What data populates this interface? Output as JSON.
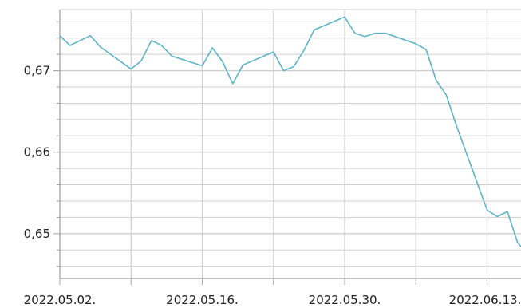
{
  "chart_data": {
    "type": "line",
    "title": "",
    "xlabel": "",
    "ylabel": "",
    "x_start": "2022-05-02",
    "x_end": "2022-06-16",
    "ylim": [
      0.6445,
      0.6775
    ],
    "y_ticks": [
      {
        "value": 0.65,
        "label": "0,65"
      },
      {
        "value": 0.66,
        "label": "0,66"
      },
      {
        "value": 0.67,
        "label": "0,67"
      }
    ],
    "x_ticks": [
      {
        "date": "2022-05-02",
        "label": "2022.05.02."
      },
      {
        "date": "2022-05-16",
        "label": "2022.05.16."
      },
      {
        "date": "2022-05-30",
        "label": "2022.05.30."
      },
      {
        "date": "2022-06-13",
        "label": "2022.06.13."
      }
    ],
    "grid": true,
    "colors": {
      "line": "#5bb3c9",
      "grid": "#cfcfcf",
      "axis": "#a0a0a0"
    },
    "series": [
      {
        "name": "",
        "points": [
          {
            "x": "2022-05-02",
            "y": 0.6743
          },
          {
            "x": "2022-05-03",
            "y": 0.6731
          },
          {
            "x": "2022-05-05",
            "y": 0.6743
          },
          {
            "x": "2022-05-06",
            "y": 0.6729
          },
          {
            "x": "2022-05-09",
            "y": 0.6702
          },
          {
            "x": "2022-05-10",
            "y": 0.6712
          },
          {
            "x": "2022-05-11",
            "y": 0.6737
          },
          {
            "x": "2022-05-12",
            "y": 0.6731
          },
          {
            "x": "2022-05-13",
            "y": 0.6718
          },
          {
            "x": "2022-05-16",
            "y": 0.6706
          },
          {
            "x": "2022-05-17",
            "y": 0.6728
          },
          {
            "x": "2022-05-18",
            "y": 0.6711
          },
          {
            "x": "2022-05-19",
            "y": 0.6684
          },
          {
            "x": "2022-05-20",
            "y": 0.6707
          },
          {
            "x": "2022-05-23",
            "y": 0.6723
          },
          {
            "x": "2022-05-24",
            "y": 0.67
          },
          {
            "x": "2022-05-25",
            "y": 0.6705
          },
          {
            "x": "2022-05-26",
            "y": 0.6725
          },
          {
            "x": "2022-05-27",
            "y": 0.675
          },
          {
            "x": "2022-05-30",
            "y": 0.6766
          },
          {
            "x": "2022-05-31",
            "y": 0.6746
          },
          {
            "x": "2022-06-01",
            "y": 0.6742
          },
          {
            "x": "2022-06-02",
            "y": 0.6746
          },
          {
            "x": "2022-06-03",
            "y": 0.6746
          },
          {
            "x": "2022-06-06",
            "y": 0.6733
          },
          {
            "x": "2022-06-07",
            "y": 0.6726
          },
          {
            "x": "2022-06-08",
            "y": 0.6688
          },
          {
            "x": "2022-06-09",
            "y": 0.667
          },
          {
            "x": "2022-06-10",
            "y": 0.6632
          },
          {
            "x": "2022-06-13",
            "y": 0.6529
          },
          {
            "x": "2022-06-14",
            "y": 0.6521
          },
          {
            "x": "2022-06-15",
            "y": 0.6527
          },
          {
            "x": "2022-06-16",
            "y": 0.6489
          },
          {
            "x": "2022-06-17",
            "y": 0.6475
          }
        ]
      }
    ]
  }
}
